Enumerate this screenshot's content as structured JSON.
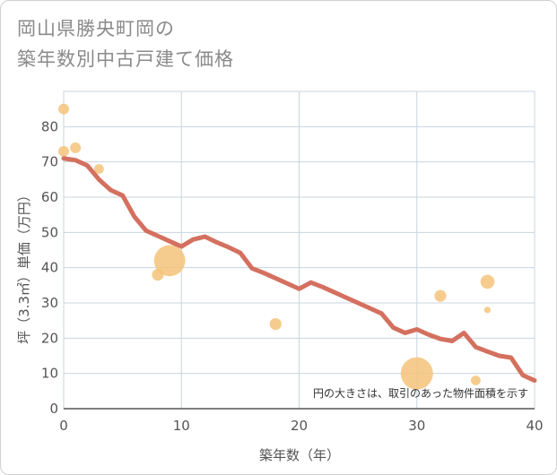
{
  "header": {
    "title_line1": "岡山県勝央町岡の",
    "title_line2": "築年数別中古戸建て価格"
  },
  "chart_data": {
    "type": "scatter",
    "title": "岡山県勝央町岡の築年数別中古戸建て価格",
    "xlabel": "築年数（年）",
    "ylabel": "坪（3.3㎡）単価（万円）",
    "xlim": [
      0,
      40
    ],
    "ylim": [
      0,
      90
    ],
    "xticks": [
      "0",
      "10",
      "20",
      "30",
      "40"
    ],
    "yticks": [
      "0",
      "10",
      "20",
      "30",
      "40",
      "50",
      "60",
      "70",
      "80"
    ],
    "xtick_values": [
      0,
      10,
      20,
      30,
      40
    ],
    "ytick_values": [
      0,
      10,
      20,
      30,
      40,
      50,
      60,
      70,
      80
    ],
    "grid": true,
    "note": "円の大きさは、取引のあった物件面積を示す",
    "colors": {
      "points": "#f5c37a",
      "line": "#d4705f",
      "grid": "#c8d4de"
    },
    "points": [
      {
        "x": 0,
        "y": 85,
        "size": 1
      },
      {
        "x": 0,
        "y": 73,
        "size": 1
      },
      {
        "x": 1,
        "y": 74,
        "size": 1
      },
      {
        "x": 3,
        "y": 68,
        "size": 0.9
      },
      {
        "x": 8,
        "y": 38,
        "size": 1.1
      },
      {
        "x": 9,
        "y": 42,
        "size": 2.9
      },
      {
        "x": 18,
        "y": 24,
        "size": 1.1
      },
      {
        "x": 30,
        "y": 10,
        "size": 3.0
      },
      {
        "x": 32,
        "y": 32,
        "size": 1.1
      },
      {
        "x": 35,
        "y": 8,
        "size": 0.9
      },
      {
        "x": 36,
        "y": 36,
        "size": 1.3
      },
      {
        "x": 36,
        "y": 28,
        "size": 0.6
      }
    ],
    "series": [
      {
        "name": "trend",
        "x": [
          0,
          1,
          2,
          3,
          4,
          5,
          6,
          7,
          8,
          9,
          10,
          11,
          12,
          13,
          14,
          15,
          16,
          17,
          18,
          19,
          20,
          21,
          22,
          23,
          24,
          25,
          26,
          27,
          28,
          29,
          30,
          31,
          32,
          33,
          34,
          35,
          36,
          37,
          38,
          39,
          40
        ],
        "values": [
          71,
          70.5,
          69,
          65,
          62,
          60.5,
          54.5,
          50.5,
          49,
          47.5,
          46,
          48,
          48.8,
          47.2,
          45.8,
          44.2,
          39.8,
          38.5,
          37,
          35.5,
          34,
          35.8,
          34.5,
          33,
          31.5,
          30,
          28.5,
          27,
          23,
          21.5,
          22.5,
          21,
          19.8,
          19.2,
          21.5,
          17.5,
          16.2,
          15,
          14.5,
          9.5,
          8
        ]
      }
    ]
  }
}
